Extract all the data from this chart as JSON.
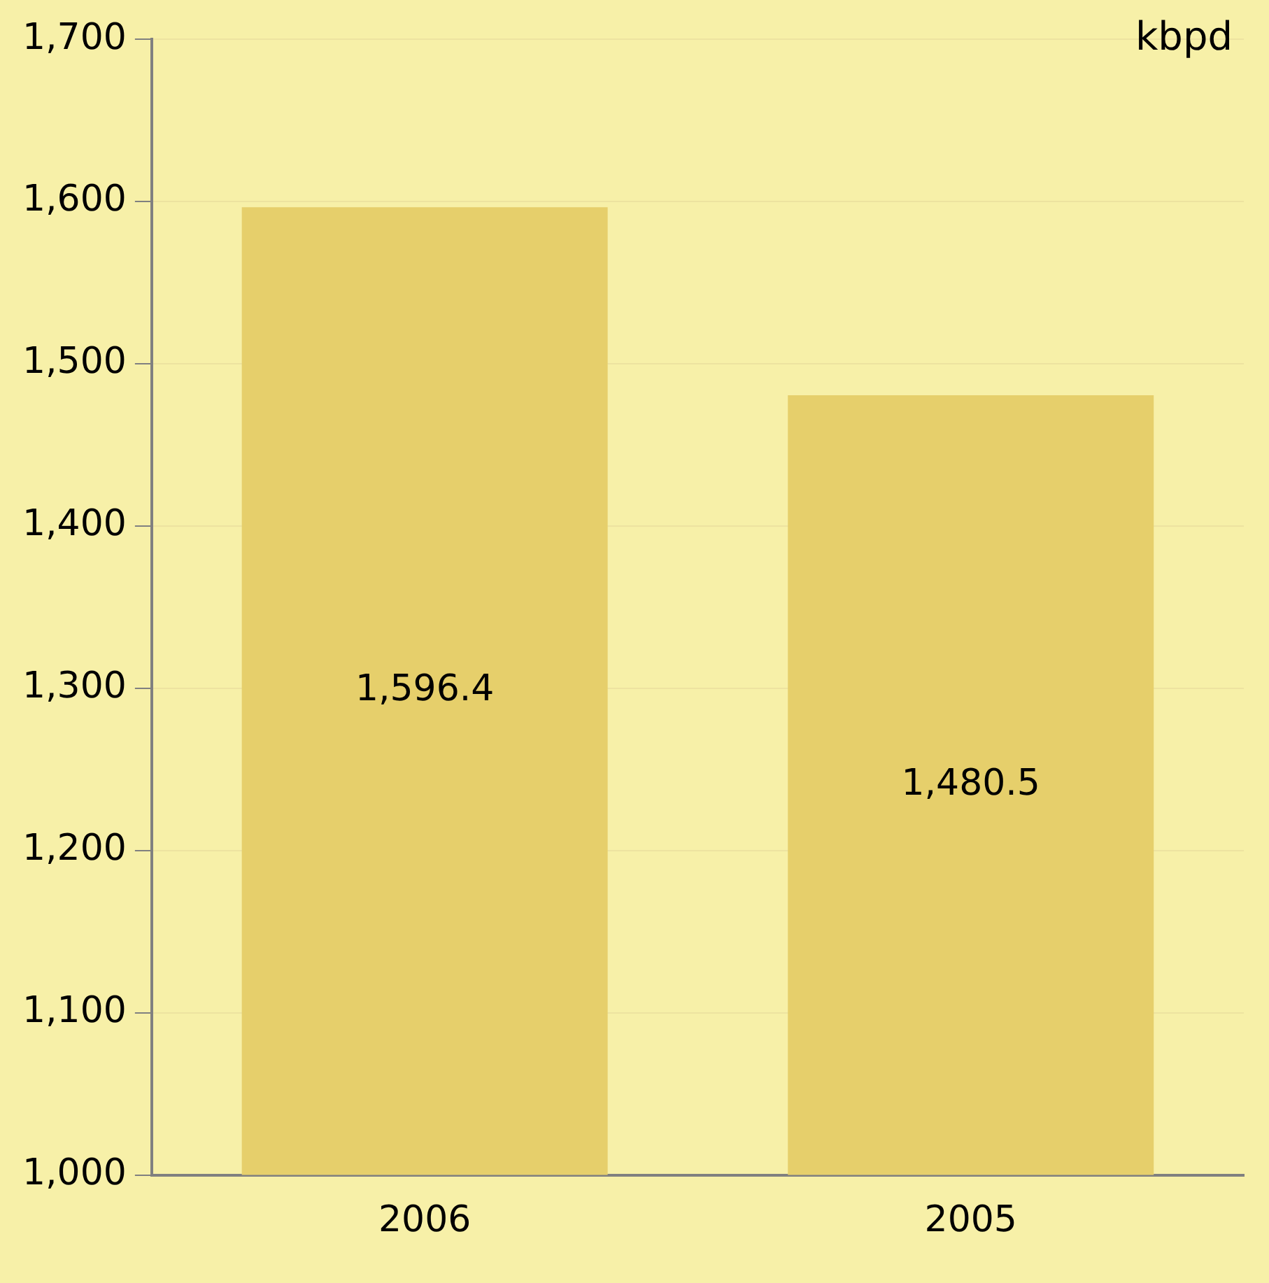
{
  "chart_data": {
    "type": "bar",
    "ylabel": "kbpd",
    "categories": [
      "2006",
      "2005"
    ],
    "values": [
      1596.4,
      1480.5
    ],
    "value_labels": [
      "1,596.4",
      "1,480.5"
    ],
    "color": "#e6cf6b",
    "ylim": [
      1000,
      1700
    ],
    "yticks": [
      {
        "value": 1000,
        "label": "1,000"
      },
      {
        "value": 1100,
        "label": "1,100"
      },
      {
        "value": 1200,
        "label": "1,200"
      },
      {
        "value": 1300,
        "label": "1,300"
      },
      {
        "value": 1400,
        "label": "1,400"
      },
      {
        "value": 1500,
        "label": "1,500"
      },
      {
        "value": 1600,
        "label": "1,600"
      },
      {
        "value": 1700,
        "label": "1,700"
      }
    ],
    "grid": "y"
  }
}
